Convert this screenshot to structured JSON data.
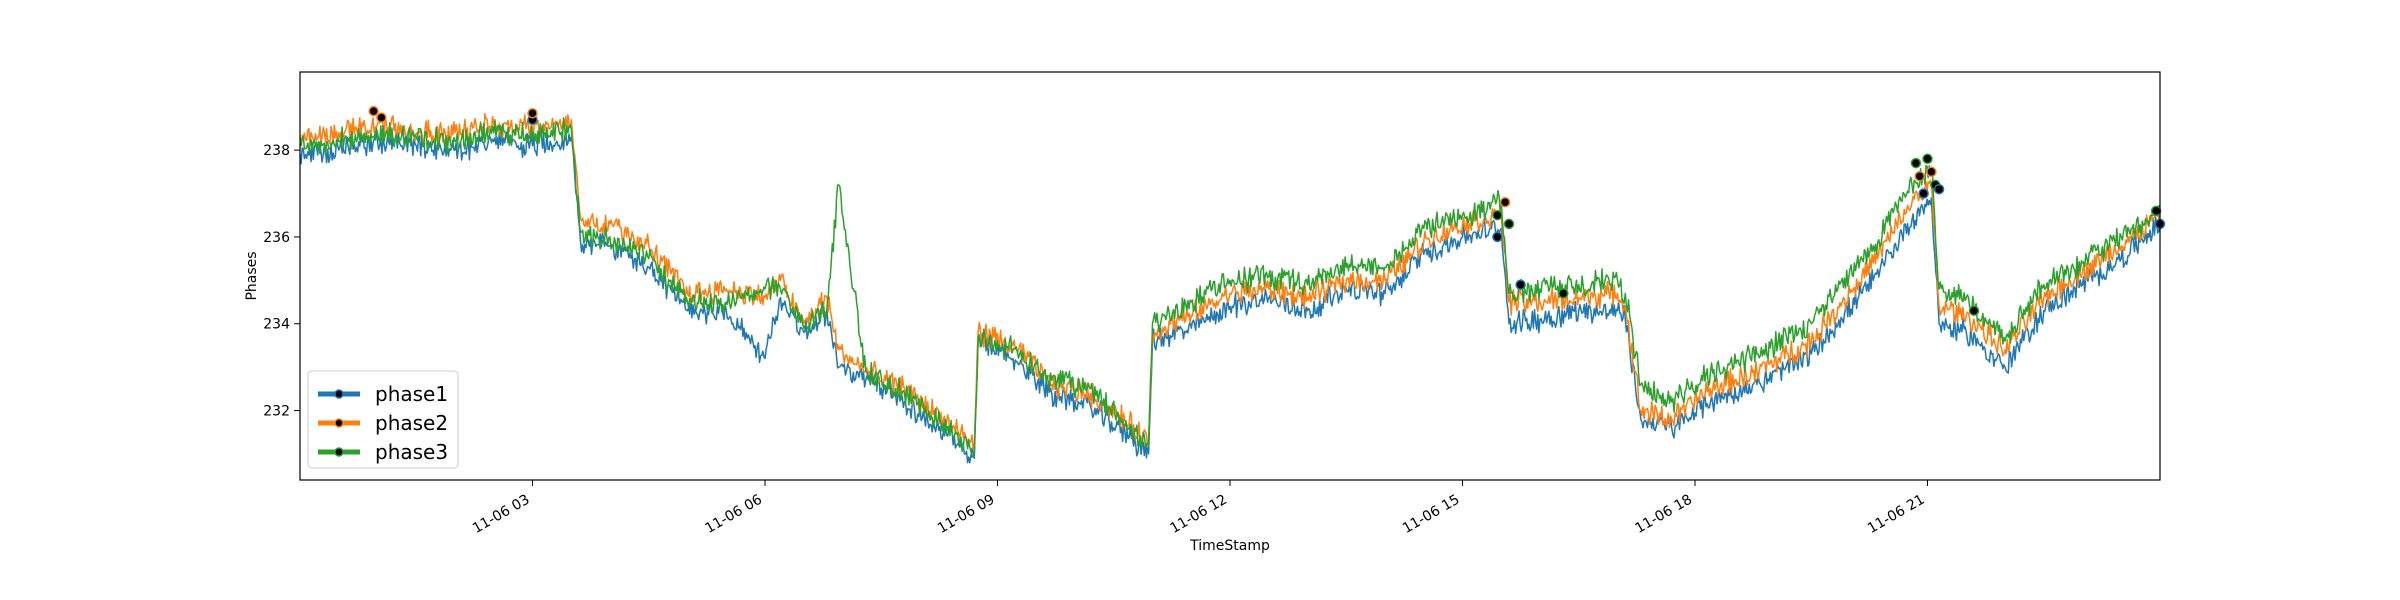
{
  "chart_data": {
    "type": "line",
    "title": "",
    "xlabel": "TimeStamp",
    "ylabel": "Phases",
    "xlim": [
      "11-06 00:00",
      "11-06 24:00"
    ],
    "ylim": [
      230.4,
      239.8
    ],
    "x_tick_labels": [
      "11-06 03",
      "11-06 06",
      "11-06 09",
      "11-06 12",
      "11-06 15",
      "11-06 18",
      "11-06 21"
    ],
    "x_tick_hours": [
      3,
      6,
      9,
      12,
      15,
      18,
      21
    ],
    "y_ticks": [
      232,
      234,
      236,
      238
    ],
    "y_tick_labels": [
      "232",
      "234",
      "236",
      "238"
    ],
    "grid": false,
    "legend_position": "lower-left",
    "x_hours": [
      0,
      0.5,
      1,
      1.5,
      2,
      2.5,
      3,
      3.5,
      3.62,
      4,
      4.5,
      5,
      5.5,
      6,
      6.2,
      6.5,
      6.8,
      6.95,
      7.3,
      7.8,
      8.3,
      8.7,
      8.75,
      9.2,
      9.7,
      10.2,
      10.7,
      10.95,
      11,
      11.5,
      12,
      12.5,
      13,
      13.5,
      14,
      14.5,
      15,
      15.5,
      15.6,
      16,
      16.5,
      17,
      17.1,
      17.3,
      17.7,
      18.2,
      18.8,
      19.5,
      20.3,
      20.8,
      21.05,
      21.15,
      21.5,
      22,
      22.5,
      23,
      23.5,
      24
    ],
    "series": [
      {
        "name": "phase1",
        "color": "#1f77b4",
        "values": [
          237.9,
          238.0,
          238.2,
          238.1,
          238.0,
          238.2,
          238.1,
          238.3,
          235.9,
          235.8,
          235.3,
          234.3,
          234.3,
          233.2,
          234.6,
          233.8,
          234.3,
          233.0,
          232.7,
          232.2,
          231.5,
          230.9,
          233.6,
          233.2,
          232.4,
          232.1,
          231.4,
          231.0,
          233.6,
          233.9,
          234.4,
          234.6,
          234.3,
          234.8,
          234.7,
          235.6,
          236.0,
          236.2,
          234.0,
          234.1,
          234.3,
          234.3,
          234.1,
          231.8,
          231.6,
          232.2,
          232.6,
          233.3,
          235.0,
          236.4,
          236.9,
          234.0,
          233.8,
          233.0,
          234.3,
          234.9,
          235.5,
          236.3
        ]
      },
      {
        "name": "phase2",
        "color": "#ff7f0e",
        "values": [
          238.3,
          238.4,
          238.6,
          238.4,
          238.4,
          238.6,
          238.5,
          238.7,
          236.4,
          236.3,
          235.8,
          234.7,
          234.8,
          234.6,
          235.0,
          234.0,
          234.6,
          233.4,
          232.9,
          232.5,
          231.8,
          231.2,
          233.8,
          233.5,
          232.6,
          232.4,
          231.7,
          231.3,
          233.8,
          234.2,
          234.7,
          234.8,
          234.6,
          235.0,
          235.0,
          235.9,
          236.3,
          236.5,
          234.5,
          234.5,
          234.6,
          234.7,
          234.4,
          232.0,
          231.8,
          232.5,
          232.9,
          233.6,
          235.4,
          236.8,
          237.2,
          234.4,
          234.2,
          233.4,
          234.6,
          235.2,
          235.8,
          236.5
        ]
      },
      {
        "name": "phase3",
        "color": "#2ca02c",
        "values": [
          238.1,
          238.2,
          238.4,
          238.3,
          238.2,
          238.4,
          238.3,
          238.5,
          236.1,
          236.0,
          235.5,
          234.5,
          234.5,
          234.8,
          234.8,
          233.9,
          234.4,
          237.2,
          232.9,
          232.4,
          231.7,
          231.0,
          233.7,
          233.4,
          232.7,
          232.5,
          231.6,
          231.2,
          234.0,
          234.5,
          235.0,
          235.1,
          234.9,
          235.3,
          235.3,
          236.2,
          236.5,
          236.8,
          234.7,
          234.8,
          234.9,
          235.0,
          234.7,
          232.6,
          232.2,
          232.9,
          233.3,
          234.0,
          235.8,
          237.2,
          237.6,
          234.8,
          234.6,
          233.6,
          234.9,
          235.4,
          236.0,
          236.6
        ]
      }
    ],
    "markers": [
      {
        "series": "phase2",
        "x": 0.95,
        "y": 238.9
      },
      {
        "series": "phase2",
        "x": 1.05,
        "y": 238.75
      },
      {
        "series": "phase1",
        "x": 3.0,
        "y": 238.7
      },
      {
        "series": "phase2",
        "x": 3.0,
        "y": 238.85
      },
      {
        "series": "phase1",
        "x": 15.45,
        "y": 236.0
      },
      {
        "series": "phase3",
        "x": 15.45,
        "y": 236.5
      },
      {
        "series": "phase2",
        "x": 15.55,
        "y": 236.8
      },
      {
        "series": "phase3",
        "x": 15.6,
        "y": 236.3
      },
      {
        "series": "phase1",
        "x": 15.75,
        "y": 234.9
      },
      {
        "series": "phase3",
        "x": 16.3,
        "y": 234.7
      },
      {
        "series": "phase3",
        "x": 20.85,
        "y": 237.7
      },
      {
        "series": "phase2",
        "x": 20.9,
        "y": 237.4
      },
      {
        "series": "phase1",
        "x": 20.95,
        "y": 237.0
      },
      {
        "series": "phase3",
        "x": 21.0,
        "y": 237.8
      },
      {
        "series": "phase2",
        "x": 21.05,
        "y": 237.5
      },
      {
        "series": "phase3",
        "x": 21.1,
        "y": 237.2
      },
      {
        "series": "phase1",
        "x": 21.15,
        "y": 237.1
      },
      {
        "series": "phase3",
        "x": 21.6,
        "y": 234.3
      },
      {
        "series": "phase3",
        "x": 23.95,
        "y": 236.6
      },
      {
        "series": "phase1",
        "x": 24.0,
        "y": 236.3
      }
    ]
  }
}
